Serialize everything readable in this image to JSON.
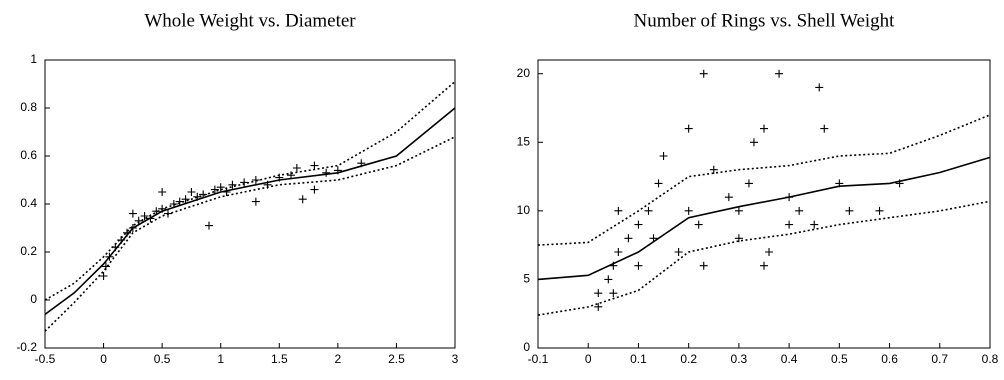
{
  "chart_data": [
    {
      "type": "scatter",
      "title": "Whole Weight vs. Diameter",
      "color": "#000000",
      "xlim": [
        -0.5,
        3
      ],
      "ylim": [
        -0.2,
        1
      ],
      "xticks": [
        -0.5,
        0,
        0.5,
        1,
        1.5,
        2,
        2.5,
        3
      ],
      "yticks": [
        -0.2,
        0,
        0.2,
        0.4,
        0.6,
        0.8,
        1
      ],
      "points": {
        "x": [
          0,
          0.02,
          0.05,
          0.1,
          0.15,
          0.2,
          0.25,
          0.3,
          0.35,
          0.4,
          0.45,
          0.5,
          0.55,
          0.6,
          0.65,
          0.7,
          0.75,
          0.8,
          0.85,
          0.9,
          0.95,
          1,
          1.05,
          1.1,
          1.2,
          1.3,
          1.3,
          1.4,
          1.5,
          1.6,
          1.65,
          1.7,
          1.8,
          1.8,
          1.9,
          2.0,
          2.2,
          0.5,
          0.25
        ],
        "y": [
          0.1,
          0.14,
          0.18,
          0.22,
          0.25,
          0.28,
          0.3,
          0.33,
          0.35,
          0.34,
          0.37,
          0.38,
          0.36,
          0.4,
          0.41,
          0.42,
          0.45,
          0.43,
          0.44,
          0.31,
          0.46,
          0.47,
          0.45,
          0.48,
          0.49,
          0.41,
          0.5,
          0.48,
          0.51,
          0.52,
          0.55,
          0.42,
          0.46,
          0.56,
          0.53,
          0.54,
          0.57,
          0.45,
          0.36
        ]
      },
      "fit": {
        "x": [
          -0.5,
          -0.25,
          0,
          0.25,
          0.5,
          1,
          1.5,
          2,
          2.5,
          3
        ],
        "y": [
          -0.06,
          0.03,
          0.15,
          0.3,
          0.37,
          0.45,
          0.5,
          0.53,
          0.6,
          0.8
        ]
      },
      "upper": {
        "x": [
          -0.5,
          -0.25,
          0,
          0.25,
          0.5,
          1,
          1.5,
          2,
          2.5,
          3
        ],
        "y": [
          0.0,
          0.07,
          0.18,
          0.31,
          0.38,
          0.46,
          0.52,
          0.56,
          0.7,
          0.91
        ]
      },
      "lower": {
        "x": [
          -0.5,
          -0.25,
          0,
          0.25,
          0.5,
          1,
          1.5,
          2,
          2.5,
          3
        ],
        "y": [
          -0.13,
          -0.01,
          0.12,
          0.28,
          0.35,
          0.43,
          0.48,
          0.5,
          0.56,
          0.68
        ]
      }
    },
    {
      "type": "scatter",
      "title": "Number of Rings vs. Shell Weight",
      "color": "#000000",
      "xlim": [
        -0.1,
        0.8
      ],
      "ylim": [
        0,
        21
      ],
      "xticks": [
        -0.1,
        0,
        0.1,
        0.2,
        0.3,
        0.4,
        0.5,
        0.6,
        0.7,
        0.8
      ],
      "yticks": [
        0,
        5,
        10,
        15,
        20
      ],
      "points": {
        "x": [
          0.02,
          0.02,
          0.04,
          0.05,
          0.05,
          0.06,
          0.08,
          0.1,
          0.1,
          0.12,
          0.13,
          0.14,
          0.15,
          0.18,
          0.2,
          0.2,
          0.22,
          0.23,
          0.23,
          0.25,
          0.28,
          0.3,
          0.32,
          0.33,
          0.35,
          0.35,
          0.36,
          0.38,
          0.4,
          0.42,
          0.45,
          0.46,
          0.47,
          0.5,
          0.52,
          0.58,
          0.62,
          0.06,
          0.3,
          0.4
        ],
        "y": [
          3,
          4,
          5,
          6,
          4,
          7,
          8,
          9,
          6,
          10,
          8,
          12,
          14,
          7,
          16,
          10,
          9,
          20,
          6,
          13,
          11,
          8,
          12,
          15,
          16,
          6,
          7,
          20,
          11,
          10,
          9,
          19,
          16,
          12,
          10,
          10,
          12,
          10,
          10,
          9
        ]
      },
      "fit": {
        "x": [
          -0.1,
          0,
          0.1,
          0.2,
          0.3,
          0.4,
          0.5,
          0.6,
          0.7,
          0.8
        ],
        "y": [
          5,
          5.3,
          7,
          9.5,
          10.3,
          11,
          11.8,
          12,
          12.8,
          13.9
        ]
      },
      "upper": {
        "x": [
          -0.1,
          0,
          0.1,
          0.2,
          0.3,
          0.4,
          0.5,
          0.6,
          0.7,
          0.8
        ],
        "y": [
          7.5,
          7.7,
          10,
          12.5,
          13,
          13.3,
          14,
          14.2,
          15.5,
          17
        ]
      },
      "lower": {
        "x": [
          -0.1,
          0,
          0.1,
          0.2,
          0.3,
          0.4,
          0.5,
          0.6,
          0.7,
          0.8
        ],
        "y": [
          2.4,
          3,
          4.2,
          7,
          7.8,
          8.3,
          9,
          9.5,
          10,
          10.7
        ]
      }
    }
  ]
}
